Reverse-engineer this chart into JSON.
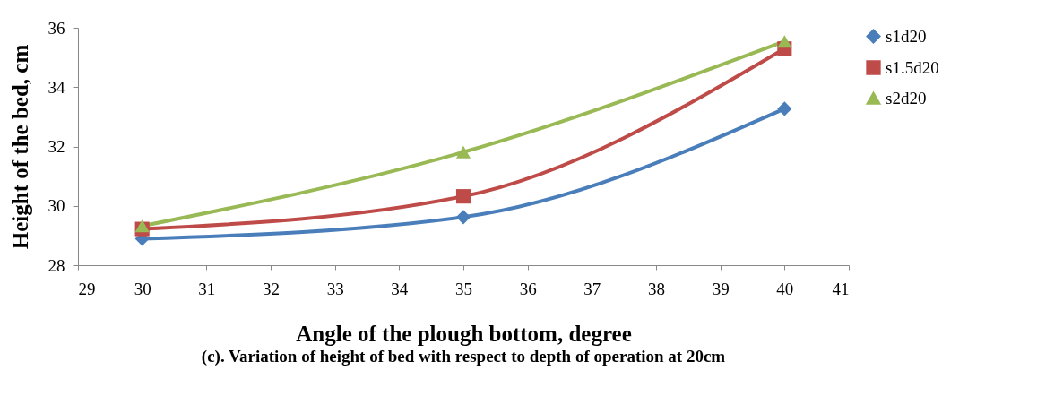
{
  "chart_data": {
    "type": "line",
    "xlabel": "Angle of the plough bottom, degree",
    "ylabel": "Height of the bed, cm",
    "annotations": [
      "(c). Variation of height of bed with respect to depth of operation at 20cm"
    ],
    "x": [
      30,
      35,
      40
    ],
    "series": [
      {
        "name": "s1d20",
        "color": "#4a7ebb",
        "marker": "diamond",
        "values": [
          28.89,
          29.62,
          33.27
        ]
      },
      {
        "name": "s1.5d20",
        "color": "#be4b48",
        "marker": "square",
        "values": [
          29.22,
          30.32,
          35.3
        ]
      },
      {
        "name": "s2d20",
        "color": "#98b954",
        "marker": "triangle",
        "values": [
          29.32,
          31.81,
          35.54
        ]
      }
    ],
    "xlim": [
      29,
      41
    ],
    "xticks": [
      29,
      30,
      31,
      32,
      33,
      34,
      35,
      36,
      37,
      38,
      39,
      40,
      41
    ],
    "ylim": [
      28,
      36
    ],
    "yticks": [
      28,
      30,
      32,
      34,
      36
    ],
    "grid": false,
    "legend": "right",
    "line_style": "solid"
  }
}
